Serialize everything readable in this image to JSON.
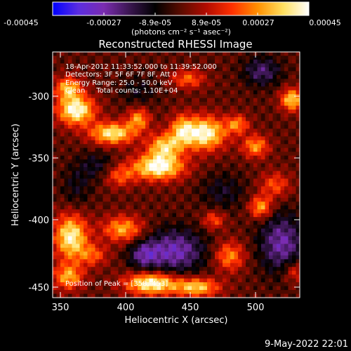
{
  "colorbar": {
    "ticks": [
      "-0.00045",
      "-0.00027",
      "-8.9e-05",
      "8.9e-05",
      "0.00027",
      "0.00045"
    ],
    "unit_label": "(photons cm⁻² s⁻¹ asec⁻²)",
    "stops": [
      "#0000ff",
      "#5b2de0",
      "#7a2cb0",
      "#3a1650",
      "#000000",
      "#5a0c00",
      "#b20b00",
      "#ff3000",
      "#ff9000",
      "#ffe060",
      "#ffffff"
    ]
  },
  "chart_data": {
    "type": "heatmap",
    "title": "Reconstructed RHESSI Image",
    "xlabel": "Heliocentric X (arcsec)",
    "ylabel": "Heliocentric Y (arcsec)",
    "xlim": [
      344,
      534
    ],
    "ylim": [
      -460,
      -270
    ],
    "xticks": [
      350,
      400,
      450,
      500
    ],
    "yticks": [
      -300,
      -350,
      -400,
      -450
    ],
    "value_range": [
      -0.00045,
      0.00045
    ],
    "blobs": [
      {
        "x": 362,
        "y": -315,
        "sx": 10,
        "sy": 8,
        "v": 0.00045
      },
      {
        "x": 356,
        "y": -298,
        "sx": 7,
        "sy": 6,
        "v": 0.00032
      },
      {
        "x": 390,
        "y": -333,
        "sx": 12,
        "sy": 6,
        "v": 0.0004
      },
      {
        "x": 410,
        "y": -322,
        "sx": 6,
        "sy": 6,
        "v": 0.00028
      },
      {
        "x": 430,
        "y": -343,
        "sx": 9,
        "sy": 7,
        "v": 0.00034
      },
      {
        "x": 443,
        "y": -330,
        "sx": 6,
        "sy": 8,
        "v": 0.00024
      },
      {
        "x": 460,
        "y": -333,
        "sx": 12,
        "sy": 9,
        "v": 0.00045
      },
      {
        "x": 486,
        "y": -326,
        "sx": 6,
        "sy": 5,
        "v": 0.00025
      },
      {
        "x": 500,
        "y": -343,
        "sx": 7,
        "sy": 6,
        "v": 0.00028
      },
      {
        "x": 528,
        "y": -307,
        "sx": 6,
        "sy": 6,
        "v": 0.00036
      },
      {
        "x": 448,
        "y": -291,
        "sx": 9,
        "sy": 5,
        "v": 0.00022
      },
      {
        "x": 425,
        "y": -359,
        "sx": 14,
        "sy": 7,
        "v": 0.00045
      },
      {
        "x": 395,
        "y": -366,
        "sx": 8,
        "sy": 6,
        "v": 0.0002
      },
      {
        "x": 515,
        "y": -373,
        "sx": 8,
        "sy": 7,
        "v": 0.0002
      },
      {
        "x": 504,
        "y": -390,
        "sx": 6,
        "sy": 6,
        "v": 0.0003
      },
      {
        "x": 468,
        "y": -400,
        "sx": 6,
        "sy": 5,
        "v": 0.0002
      },
      {
        "x": 358,
        "y": -413,
        "sx": 9,
        "sy": 12,
        "v": 0.00042
      },
      {
        "x": 398,
        "y": -407,
        "sx": 11,
        "sy": 7,
        "v": 0.0003
      },
      {
        "x": 375,
        "y": -427,
        "sx": 8,
        "sy": 6,
        "v": 0.0002
      },
      {
        "x": 356,
        "y": -444,
        "sx": 8,
        "sy": 7,
        "v": 0.0003
      },
      {
        "x": 420,
        "y": -449,
        "sx": 14,
        "sy": 6,
        "v": 0.00045
      },
      {
        "x": 455,
        "y": -452,
        "sx": 12,
        "sy": 5,
        "v": 0.00035
      },
      {
        "x": 480,
        "y": -428,
        "sx": 8,
        "sy": 8,
        "v": 0.00026
      },
      {
        "x": 530,
        "y": -440,
        "sx": 6,
        "sy": 6,
        "v": 0.00018
      },
      {
        "x": 438,
        "y": -424,
        "sx": 16,
        "sy": 12,
        "v": -0.00028
      },
      {
        "x": 414,
        "y": -427,
        "sx": 8,
        "sy": 8,
        "v": -0.0002
      },
      {
        "x": 520,
        "y": -418,
        "sx": 12,
        "sy": 16,
        "v": -0.00026
      },
      {
        "x": 475,
        "y": -378,
        "sx": 12,
        "sy": 10,
        "v": -0.00012
      },
      {
        "x": 378,
        "y": -358,
        "sx": 10,
        "sy": 8,
        "v": -0.00012
      },
      {
        "x": 505,
        "y": -285,
        "sx": 10,
        "sy": 8,
        "v": -0.0002
      },
      {
        "x": 410,
        "y": -300,
        "sx": 10,
        "sy": 8,
        "v": -0.0001
      },
      {
        "x": 362,
        "y": -375,
        "sx": 8,
        "sy": 12,
        "v": -0.0001
      }
    ]
  },
  "annotations": {
    "line1": "18-Apr-2012 11:33:52.000 to 11:39:52.000",
    "line2": "Detectors: 3F 5F 6F 7F 8F, Att 0",
    "line3": "Energy Range: 25.0 - 50.0 keV",
    "line4": "Clean     Total counts: 1.10E+04",
    "peak": "Position of Peak = [358,-453]"
  },
  "timestamp": "9-May-2022 22:01"
}
